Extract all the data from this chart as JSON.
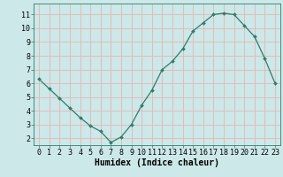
{
  "x": [
    0,
    1,
    2,
    3,
    4,
    5,
    6,
    7,
    8,
    9,
    10,
    11,
    12,
    13,
    14,
    15,
    16,
    17,
    18,
    19,
    20,
    21,
    22,
    23
  ],
  "y": [
    6.3,
    5.6,
    4.9,
    4.2,
    3.5,
    2.9,
    2.5,
    1.7,
    2.1,
    3.0,
    4.4,
    5.5,
    7.0,
    7.6,
    8.5,
    9.8,
    10.4,
    11.0,
    11.1,
    11.0,
    10.2,
    9.4,
    7.8,
    6.0
  ],
  "xlabel": "Humidex (Indice chaleur)",
  "ylim": [
    1.5,
    11.8
  ],
  "xlim": [
    -0.5,
    23.5
  ],
  "yticks": [
    2,
    3,
    4,
    5,
    6,
    7,
    8,
    9,
    10,
    11
  ],
  "xticks": [
    0,
    1,
    2,
    3,
    4,
    5,
    6,
    7,
    8,
    9,
    10,
    11,
    12,
    13,
    14,
    15,
    16,
    17,
    18,
    19,
    20,
    21,
    22,
    23
  ],
  "line_color": "#2e7d6e",
  "marker": "D",
  "marker_size": 2.0,
  "bg_color": "#cce8e8",
  "grid_color": "#e8b4b4",
  "xlabel_fontsize": 7,
  "tick_fontsize": 6,
  "title_fontsize": 7
}
